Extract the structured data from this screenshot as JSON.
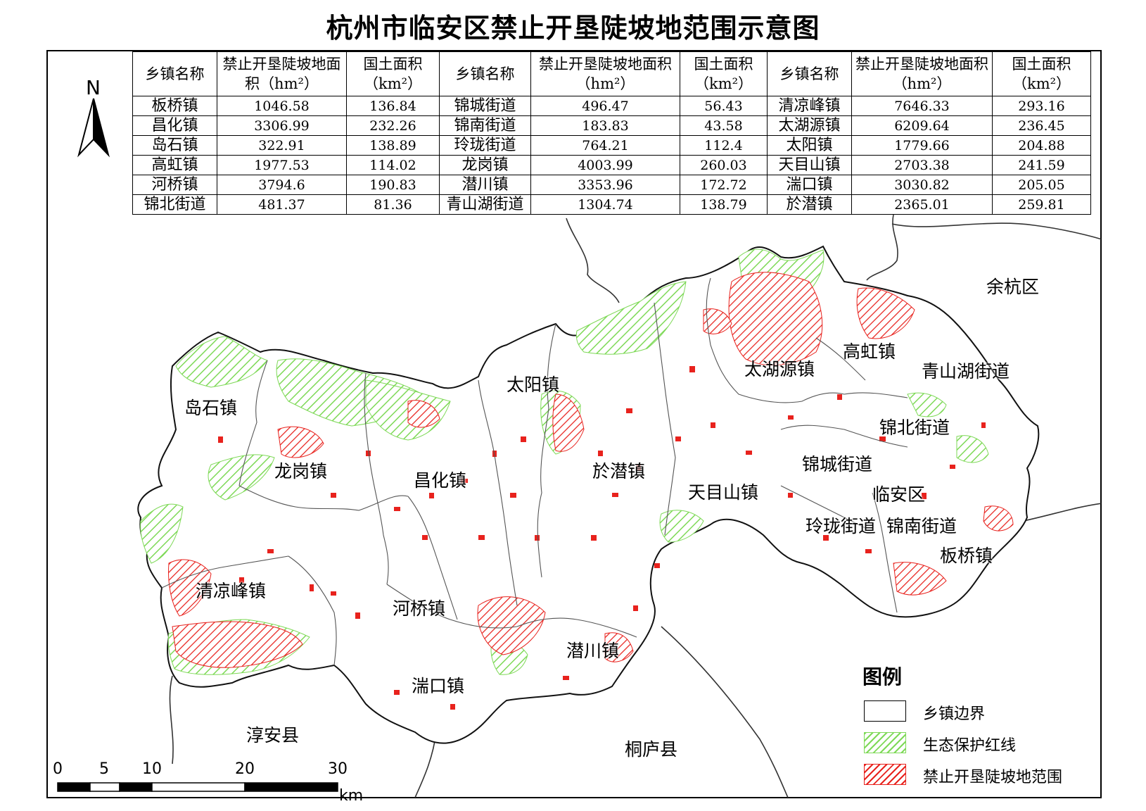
{
  "title": "杭州市临安区禁止开垦陡坡地范围示意图",
  "table": {
    "headers": [
      "乡镇名称",
      "禁止开垦陡坡地面积（hm²）",
      "国土面积（km²）",
      "乡镇名称",
      "禁止开垦陡坡地面积（hm²）",
      "国土面积（km²）",
      "乡镇名称",
      "禁止开垦陡坡地面积（hm²）",
      "国土面积（km²）"
    ],
    "rows": [
      [
        "板桥镇",
        "1046.58",
        "136.84",
        "锦城街道",
        "496.47",
        "56.43",
        "清凉峰镇",
        "7646.33",
        "293.16"
      ],
      [
        "昌化镇",
        "3306.99",
        "232.26",
        "锦南街道",
        "183.83",
        "43.58",
        "太湖源镇",
        "6209.64",
        "236.45"
      ],
      [
        "岛石镇",
        "322.91",
        "138.89",
        "玲珑街道",
        "764.21",
        "112.4",
        "太阳镇",
        "1779.66",
        "204.88"
      ],
      [
        "高虹镇",
        "1977.53",
        "114.02",
        "龙岗镇",
        "4003.99",
        "260.03",
        "天目山镇",
        "2703.38",
        "241.59"
      ],
      [
        "河桥镇",
        "3794.6",
        "190.83",
        "潜川镇",
        "3353.96",
        "172.72",
        "湍口镇",
        "3030.82",
        "205.05"
      ],
      [
        "锦北街道",
        "481.37",
        "81.36",
        "青山湖街道",
        "1304.74",
        "138.79",
        "於潜镇",
        "2365.01",
        "259.81"
      ]
    ]
  },
  "towns": {
    "daoshi": "岛石镇",
    "longgang": "龙岗镇",
    "changhua": "昌化镇",
    "taiyang": "太阳镇",
    "yuqian": "於潜镇",
    "tianmushan": "天目山镇",
    "taihuyuan": "太湖源镇",
    "gaohong": "高虹镇",
    "qingshanhu": "青山湖街道",
    "jinbei": "锦北街道",
    "jincheng": "锦城街道",
    "linan": "临安区",
    "linglong": "玲珑街道",
    "jinnan": "锦南街道",
    "banqiao": "板桥镇",
    "qingliangfeng": "清凉峰镇",
    "heqiao": "河桥镇",
    "qianchuan": "潜川镇",
    "tuankou": "湍口镇"
  },
  "neighbors": {
    "yuhang": "余杭区",
    "chunan": "淳安县",
    "tonglu": "桐庐县"
  },
  "north_arrow": "N",
  "legend": {
    "title": "图例",
    "items": [
      {
        "label": "乡镇边界",
        "style": "outline",
        "color": "#000000"
      },
      {
        "label": "生态保护红线",
        "style": "hatch",
        "color": "#7ed957"
      },
      {
        "label": "禁止开垦陡坡地范围",
        "style": "hatch",
        "color": "#e8221d"
      }
    ]
  },
  "scale_bar": {
    "ticks": [
      "0",
      "5",
      "10",
      "20",
      "30"
    ],
    "unit": "km"
  },
  "colors": {
    "eco_red_line": "#7ed957",
    "slope_land": "#e8221d",
    "boundary": "#222222"
  }
}
